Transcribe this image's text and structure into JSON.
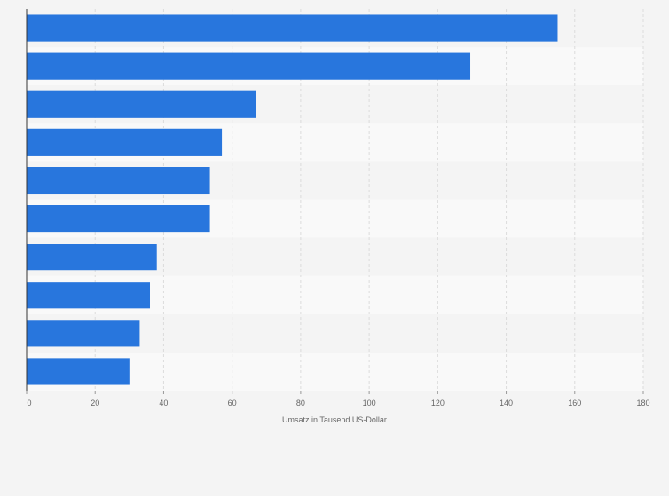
{
  "chart_data": {
    "type": "bar",
    "orientation": "horizontal",
    "categories": [
      "",
      "",
      "",
      "",
      "",
      "",
      "",
      "",
      "",
      ""
    ],
    "values": [
      155,
      129.5,
      67,
      57,
      53.5,
      53.5,
      38,
      36,
      33,
      30
    ],
    "title": "",
    "xlabel": "Umsatz in Tausend US-Dollar",
    "ylabel": "",
    "xlim": [
      0,
      180
    ],
    "x_ticks": [
      "0",
      "20",
      "40",
      "60",
      "80",
      "100",
      "120",
      "140",
      "160",
      "180"
    ],
    "grid": true,
    "bar_color": "#2876dd",
    "band_colors": [
      "#f4f4f4",
      "#f9f9f9"
    ]
  }
}
